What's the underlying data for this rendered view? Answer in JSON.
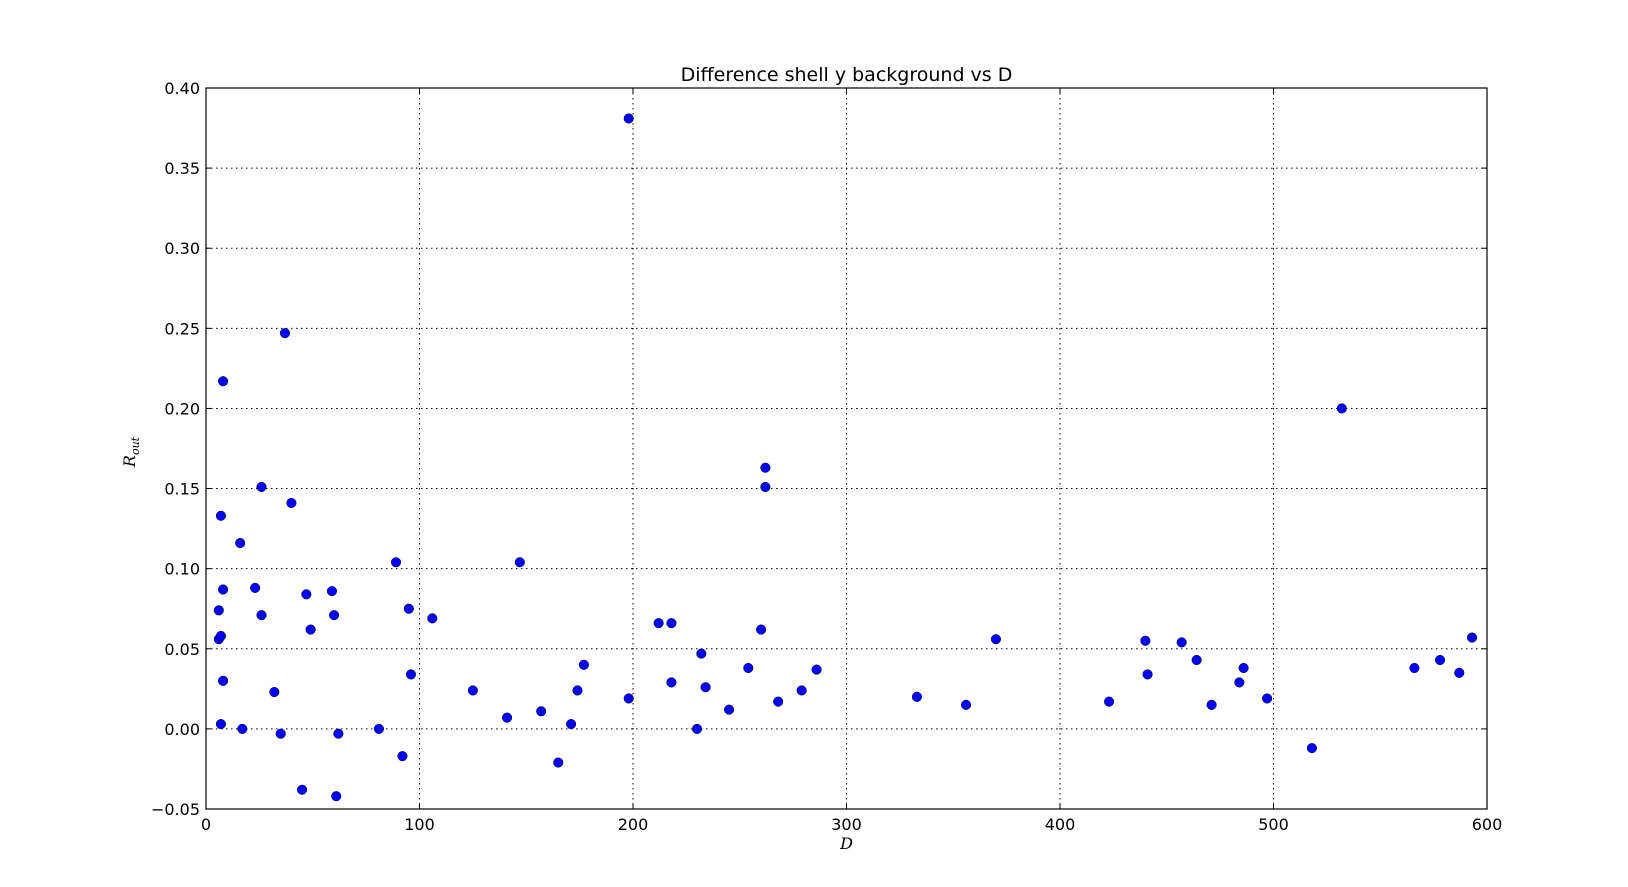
{
  "chart_data": {
    "type": "scatter",
    "title": "Difference shell  y   background vs D",
    "xlabel": "D",
    "ylabel": "R",
    "ylabel_sub": "out",
    "xlim": [
      0,
      600
    ],
    "ylim": [
      -0.05,
      0.4
    ],
    "xticks": [
      0,
      100,
      200,
      300,
      400,
      500,
      600
    ],
    "xtick_labels": [
      "0",
      "100",
      "200",
      "300",
      "400",
      "500",
      "600"
    ],
    "yticks": [
      -0.05,
      0.0,
      0.05,
      0.1,
      0.15,
      0.2,
      0.25,
      0.3,
      0.35,
      0.4
    ],
    "ytick_labels": [
      "−0.05",
      "0.00",
      "0.05",
      "0.10",
      "0.15",
      "0.20",
      "0.25",
      "0.30",
      "0.35",
      "0.40"
    ],
    "grid": true,
    "marker_color": "#0000ff",
    "series": [
      {
        "points": [
          [
            6,
            0.056
          ],
          [
            6,
            0.074
          ],
          [
            7,
            0.058
          ],
          [
            7,
            0.003
          ],
          [
            7,
            0.133
          ],
          [
            8,
            0.03
          ],
          [
            8,
            0.087
          ],
          [
            8,
            0.217
          ],
          [
            16,
            0.116
          ],
          [
            17,
            0.0
          ],
          [
            23,
            0.088
          ],
          [
            26,
            0.151
          ],
          [
            26,
            0.071
          ],
          [
            32,
            0.023
          ],
          [
            35,
            -0.003
          ],
          [
            37,
            0.247
          ],
          [
            40,
            0.141
          ],
          [
            45,
            -0.038
          ],
          [
            47,
            0.084
          ],
          [
            49,
            0.062
          ],
          [
            59,
            0.086
          ],
          [
            60,
            0.071
          ],
          [
            61,
            -0.042
          ],
          [
            62,
            -0.003
          ],
          [
            81,
            0.0
          ],
          [
            89,
            0.104
          ],
          [
            92,
            -0.017
          ],
          [
            95,
            0.075
          ],
          [
            96,
            0.034
          ],
          [
            106,
            0.069
          ],
          [
            125,
            0.024
          ],
          [
            141,
            0.007
          ],
          [
            147,
            0.104
          ],
          [
            157,
            0.011
          ],
          [
            165,
            -0.021
          ],
          [
            171,
            0.003
          ],
          [
            174,
            0.024
          ],
          [
            177,
            0.04
          ],
          [
            198,
            0.381
          ],
          [
            198,
            0.019
          ],
          [
            212,
            0.066
          ],
          [
            218,
            0.066
          ],
          [
            218,
            0.029
          ],
          [
            230,
            0.0
          ],
          [
            232,
            0.047
          ],
          [
            234,
            0.026
          ],
          [
            245,
            0.012
          ],
          [
            254,
            0.038
          ],
          [
            260,
            0.062
          ],
          [
            262,
            0.163
          ],
          [
            262,
            0.151
          ],
          [
            268,
            0.017
          ],
          [
            279,
            0.024
          ],
          [
            286,
            0.037
          ],
          [
            333,
            0.02
          ],
          [
            356,
            0.015
          ],
          [
            370,
            0.056
          ],
          [
            423,
            0.017
          ],
          [
            440,
            0.055
          ],
          [
            441,
            0.034
          ],
          [
            457,
            0.054
          ],
          [
            464,
            0.043
          ],
          [
            471,
            0.015
          ],
          [
            484,
            0.029
          ],
          [
            486,
            0.038
          ],
          [
            497,
            0.019
          ],
          [
            518,
            -0.012
          ],
          [
            532,
            0.2
          ],
          [
            566,
            0.038
          ],
          [
            578,
            0.043
          ],
          [
            587,
            0.035
          ],
          [
            593,
            0.057
          ]
        ]
      }
    ]
  }
}
